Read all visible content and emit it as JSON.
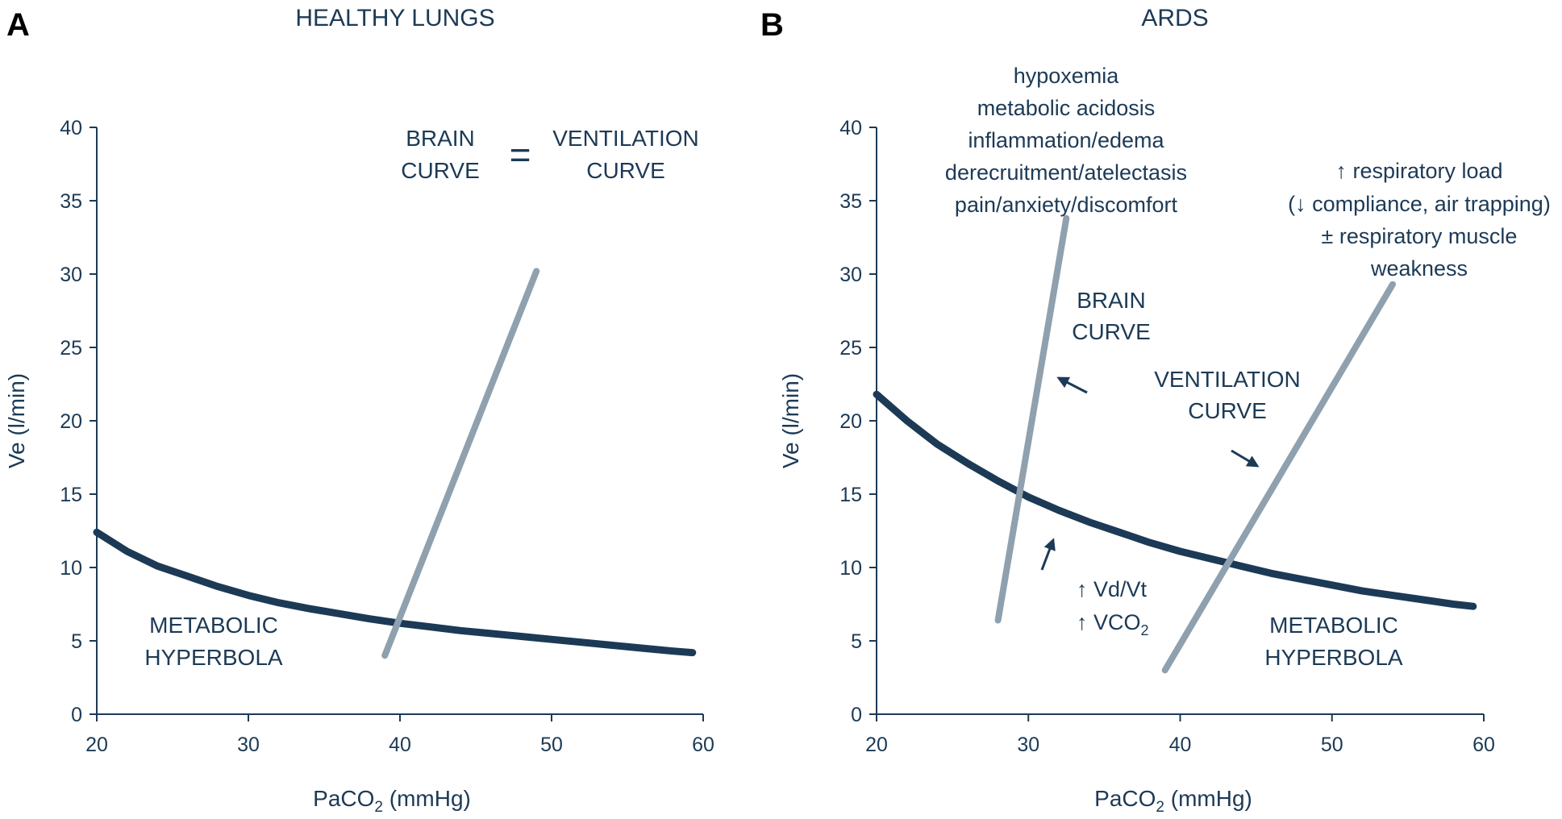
{
  "colors": {
    "dark": "#1c3a56",
    "light": "#8fa0ae",
    "letter": "#000000"
  },
  "chart_data": [
    {
      "type": "line",
      "panel": "A",
      "title": "HEALTHY LUNGS",
      "xlabel_main": "PaCO",
      "xlabel_sub": "2",
      "xlabel_rest": " (mmHg)",
      "ylabel": "Ve (l/min)",
      "xlim": [
        20,
        60
      ],
      "ylim": [
        0,
        40
      ],
      "xticks": [
        20,
        30,
        40,
        50,
        60
      ],
      "yticks": [
        0,
        5,
        10,
        15,
        20,
        25,
        30,
        35,
        40
      ],
      "series": [
        {
          "name": "metabolic-hyperbola",
          "style": "dark",
          "x": [
            20,
            22,
            24,
            26,
            28,
            30,
            32,
            34,
            36,
            38,
            40,
            42,
            44,
            46,
            48,
            50,
            52,
            54,
            56,
            58,
            59.3
          ],
          "y": [
            12.4,
            11.1,
            10.1,
            9.4,
            8.7,
            8.1,
            7.6,
            7.2,
            6.85,
            6.5,
            6.2,
            5.95,
            5.7,
            5.5,
            5.3,
            5.1,
            4.9,
            4.7,
            4.5,
            4.3,
            4.2
          ]
        },
        {
          "name": "ventilation-curve",
          "style": "light",
          "x": [
            39,
            49
          ],
          "y": [
            4,
            30.2
          ]
        }
      ],
      "annotations": {
        "hyperbola": [
          "METABOLIC",
          "HYPERBOLA"
        ],
        "brain": [
          "BRAIN",
          "CURVE"
        ],
        "equals": "=",
        "ventilation": [
          "VENTILATION",
          "CURVE"
        ]
      }
    },
    {
      "type": "line",
      "panel": "B",
      "title": "ARDS",
      "xlabel_main": "PaCO",
      "xlabel_sub": "2",
      "xlabel_rest": " (mmHg)",
      "ylabel": "Ve (l/min)",
      "xlim": [
        20,
        60
      ],
      "ylim": [
        0,
        40
      ],
      "xticks": [
        20,
        30,
        40,
        50,
        60
      ],
      "yticks": [
        0,
        5,
        10,
        15,
        20,
        25,
        30,
        35,
        40
      ],
      "series": [
        {
          "name": "metabolic-hyperbola",
          "style": "dark",
          "x": [
            20,
            22,
            24,
            26,
            28,
            30,
            32,
            34,
            36,
            38,
            40,
            42,
            44,
            46,
            48,
            50,
            52,
            54,
            56,
            58,
            59.3
          ],
          "y": [
            21.8,
            20.0,
            18.4,
            17.1,
            15.9,
            14.8,
            13.9,
            13.1,
            12.4,
            11.7,
            11.1,
            10.6,
            10.1,
            9.6,
            9.2,
            8.8,
            8.4,
            8.1,
            7.8,
            7.5,
            7.35
          ]
        },
        {
          "name": "brain-curve",
          "style": "light",
          "x": [
            28,
            32.5
          ],
          "y": [
            6.4,
            33.8
          ]
        },
        {
          "name": "ventilation-curve",
          "style": "light",
          "x": [
            39,
            54
          ],
          "y": [
            3,
            29.3
          ]
        }
      ],
      "annotations": {
        "brain_causes": [
          "hypoxemia",
          "metabolic acidosis",
          "inflammation/edema",
          "derecruitment/atelectasis",
          "pain/anxiety/discomfort"
        ],
        "load_causes": [
          "↑ respiratory load",
          "(↓ compliance, air trapping)",
          "± respiratory muscle",
          "weakness"
        ],
        "brain": [
          "BRAIN",
          "CURVE"
        ],
        "ventilation": [
          "VENTILATION",
          "CURVE"
        ],
        "hyperbola": [
          "METABOLIC",
          "HYPERBOLA"
        ],
        "vdvt": "↑ Vd/Vt",
        "vco2_main": "↑ VCO",
        "vco2_sub": "2"
      }
    }
  ]
}
